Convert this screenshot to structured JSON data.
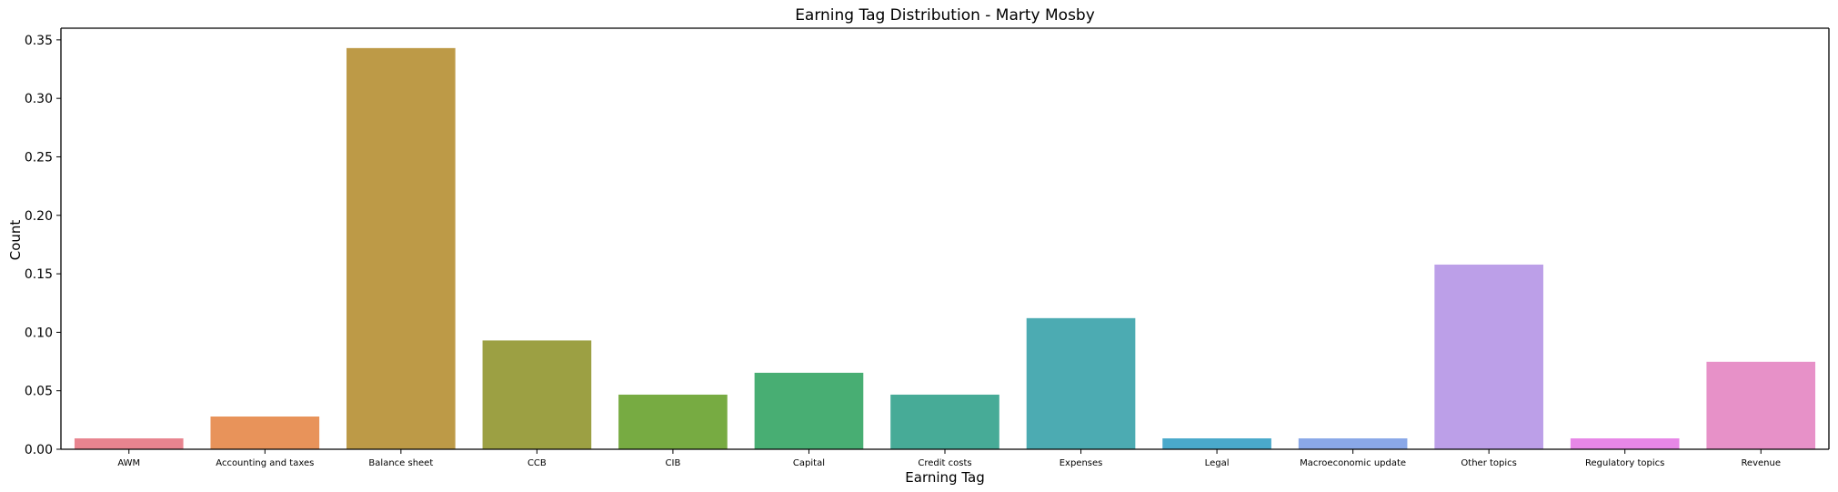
{
  "chart_data": {
    "type": "bar",
    "title": "Earning Tag Distribution - Marty Mosby",
    "xlabel": "Earning Tag",
    "ylabel": "Count",
    "categories": [
      "AWM",
      "Accounting and taxes",
      "Balance sheet",
      "CCB",
      "CIB",
      "Capital",
      "Credit costs",
      "Expenses",
      "Legal",
      "Macroeconomic update",
      "Other topics",
      "Regulatory topics",
      "Revenue"
    ],
    "values": [
      0.0093,
      0.028,
      0.343,
      0.093,
      0.0467,
      0.0654,
      0.0467,
      0.1121,
      0.0093,
      0.0093,
      0.1579,
      0.0093,
      0.0748
    ],
    "colors": [
      "#e8848f",
      "#e8935a",
      "#bd9a47",
      "#9ca043",
      "#77ab42",
      "#48ae73",
      "#47ab97",
      "#4cabb2",
      "#4aa9cb",
      "#8aa8e8",
      "#bc9fe8",
      "#e787e7",
      "#e791c8"
    ],
    "ylim": [
      0,
      0.36
    ],
    "yticks": [
      "0.00",
      "0.05",
      "0.10",
      "0.15",
      "0.20",
      "0.25",
      "0.30",
      "0.35"
    ],
    "grid": false,
    "legend": "none"
  }
}
